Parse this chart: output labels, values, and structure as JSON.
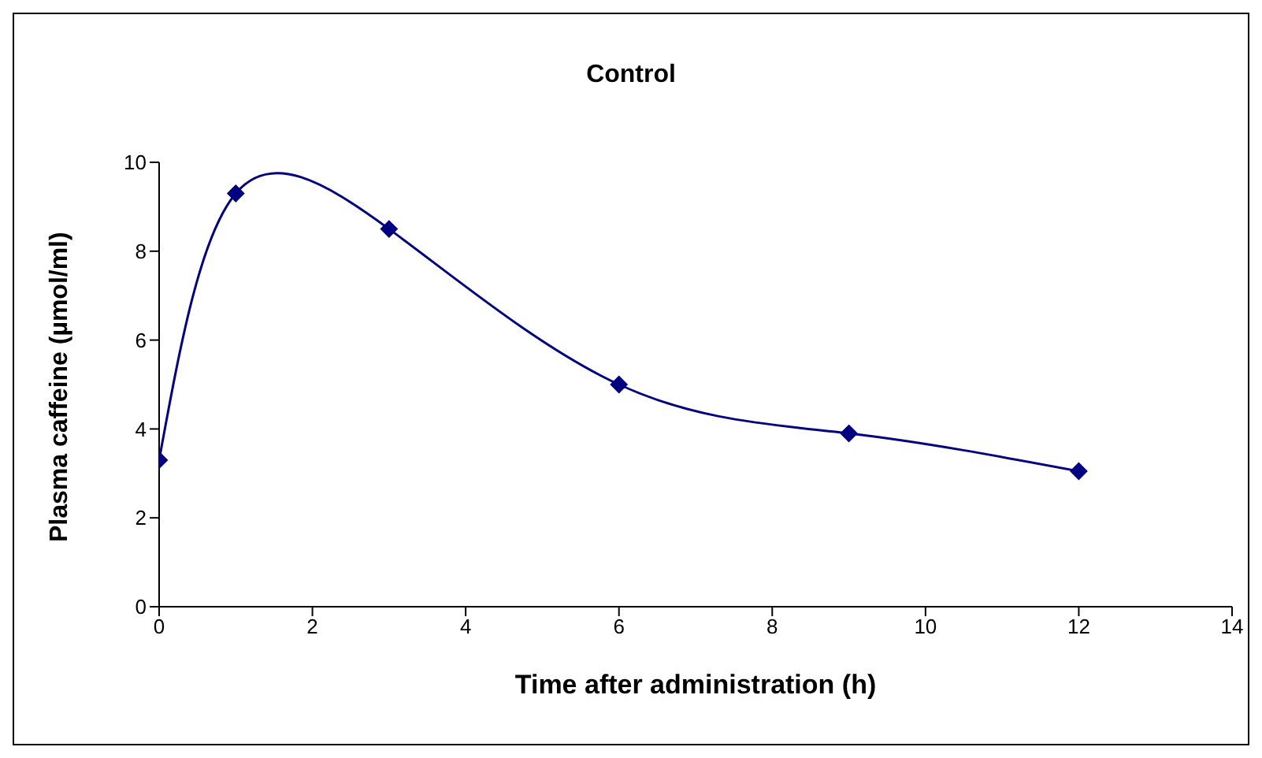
{
  "chart_data": {
    "type": "line",
    "title": "Control",
    "xlabel": "Time after administration (h)",
    "ylabel": "Plasma caffeine (µmol/ml)",
    "x": [
      0,
      1,
      3,
      6,
      9,
      12
    ],
    "series": [
      {
        "color": "#000080",
        "values": [
          3.3,
          9.3,
          8.5,
          5.0,
          3.9,
          3.05
        ]
      }
    ],
    "xlim": [
      0,
      14
    ],
    "xticks": [
      0,
      2,
      4,
      6,
      8,
      10,
      12,
      14
    ],
    "ylim": [
      0,
      10
    ],
    "yticks": [
      0,
      2,
      4,
      6,
      8,
      10
    ],
    "grid": false,
    "legend": false,
    "marker": "diamond",
    "line_style": "solid"
  }
}
